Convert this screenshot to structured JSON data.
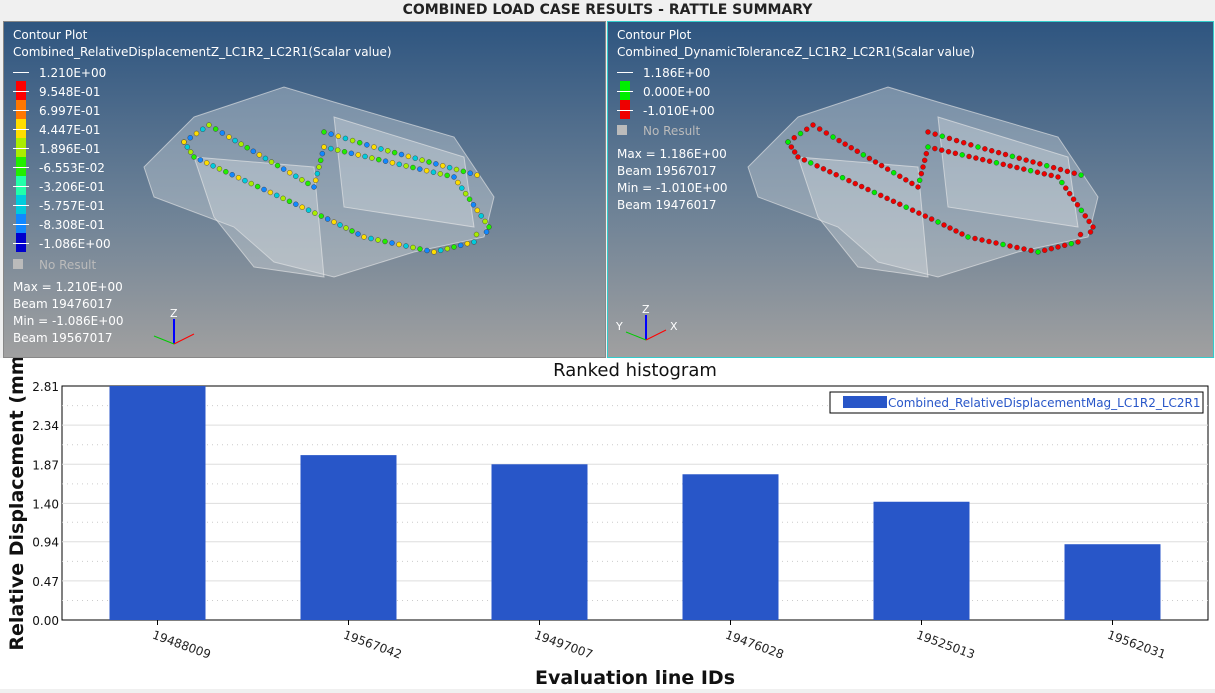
{
  "window_title": "COMBINED LOAD CASE RESULTS - RATTLE SUMMARY",
  "viewports": [
    {
      "heading": "Contour Plot",
      "result": "Combined_RelativeDisplacementZ_LC1R2_LC2R1(Scalar value)",
      "legend_values": [
        "1.210E+00",
        "9.548E-01",
        "6.997E-01",
        "4.447E-01",
        "1.896E-01",
        "-6.553E-02",
        "-3.206E-01",
        "-5.757E-01",
        "-8.308E-01",
        "-1.086E+00"
      ],
      "legend_colors": [
        "#ff0000",
        "#ff7700",
        "#ffdd00",
        "#aaee00",
        "#22ee00",
        "#22ffaa",
        "#00ccdd",
        "#1188ff",
        "#0000cc"
      ],
      "no_result": "No Result",
      "max": "Max =  1.210E+00",
      "max_beam": "Beam 19476017",
      "min": "Min = -1.086E+00",
      "min_beam": "Beam 19567017"
    },
    {
      "heading": "Contour Plot",
      "result": "Combined_DynamicToleranceZ_LC1R2_LC2R1(Scalar value)",
      "legend_values": [
        "1.186E+00",
        "0.000E+00",
        "-1.010E+00"
      ],
      "legend_colors": [
        "#00ee00",
        "#ee0000"
      ],
      "no_result": "No Result",
      "max": "Max =  1.186E+00",
      "max_beam": "Beam 19567017",
      "min": "Min = -1.010E+00",
      "min_beam": "Beam 19476017"
    }
  ],
  "axis_labels": {
    "x": "X",
    "y": "Y",
    "z": "Z"
  },
  "chart_data": {
    "type": "bar",
    "title": "Ranked histogram",
    "categories": [
      "19488009",
      "19567042",
      "19497007",
      "19476028",
      "19525013",
      "19562031"
    ],
    "series": [
      {
        "name": "Combined_RelativeDisplacementMag_LC1R2_LC2R1",
        "values": [
          2.81,
          1.98,
          1.87,
          1.75,
          1.42,
          0.91
        ],
        "color": "#2856c8"
      }
    ],
    "xlabel": "Evaluation line IDs",
    "ylabel": "Relative Displacement (mm",
    "ylim": [
      0,
      2.81
    ],
    "yticks": [
      "0.00",
      "0.47",
      "0.94",
      "1.40",
      "1.87",
      "2.34",
      "2.81"
    ],
    "grid": true,
    "legend_position": "top-right"
  }
}
